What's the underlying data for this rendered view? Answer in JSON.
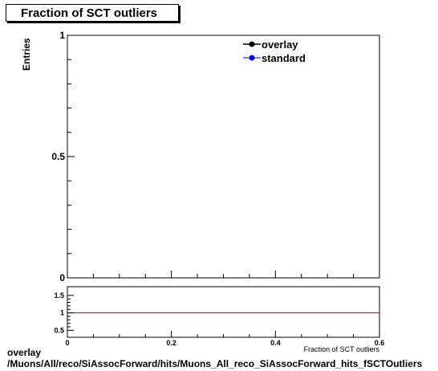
{
  "chart_data": [
    {
      "type": "line",
      "title": "Fraction of SCT outliers",
      "xlabel": "Fraction of SCT outliers",
      "ylabel": "Entries",
      "xlim": [
        0,
        0.6
      ],
      "ylim": [
        0,
        1
      ],
      "x_ticks": [
        "0",
        "0.2",
        "0.4",
        "0.6"
      ],
      "y_ticks": [
        "0",
        "0.5",
        "1"
      ],
      "legend": {
        "placement": "top-right"
      },
      "series": [
        {
          "name": "overlay",
          "color": "#000000",
          "marker": "circle",
          "values": []
        },
        {
          "name": "standard",
          "color": "#0000ff",
          "marker": "circle",
          "values": []
        }
      ]
    },
    {
      "type": "line",
      "xlim": [
        0,
        0.6
      ],
      "ylim": [
        0.3,
        1.75
      ],
      "x_ticks": [
        "0",
        "0.2",
        "0.4",
        "0.6"
      ],
      "y_ticks": [
        "0.5",
        "1",
        "1.5"
      ],
      "reference_line": {
        "y": 1,
        "color": "#cc0000"
      }
    }
  ],
  "caption": {
    "line1": "overlay",
    "line2": "/Muons/All/reco/SiAssocForward/hits/Muons_All_reco_SiAssocForward_hits_fSCTOutliers"
  }
}
